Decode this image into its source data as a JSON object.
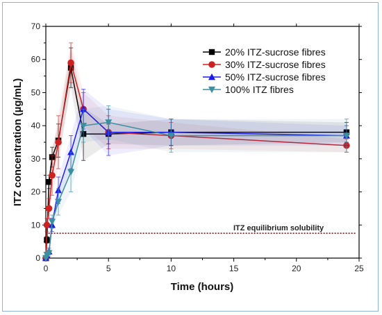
{
  "chart_data": {
    "type": "line",
    "xlabel": "Time (hours)",
    "ylabel": "ITZ concentration (µg/mL)",
    "xlim": [
      0,
      25
    ],
    "ylim": [
      0,
      70
    ],
    "xticks": [
      0,
      5,
      10,
      15,
      20,
      25
    ],
    "yticks": [
      0,
      10,
      20,
      30,
      40,
      50,
      60,
      70
    ],
    "legend_position": "top-right",
    "grid": false,
    "series": [
      {
        "name": "20% ITZ-sucrose fibres",
        "color": "#000000",
        "marker": "square",
        "x": [
          0,
          0.083,
          0.25,
          0.5,
          1,
          2,
          3,
          5,
          10,
          24
        ],
        "y": [
          0,
          5.5,
          23,
          30.5,
          35.5,
          57.5,
          37.5,
          37.5,
          38,
          38
        ],
        "err": [
          0,
          1,
          2,
          3,
          5,
          6,
          8,
          3,
          4,
          3
        ]
      },
      {
        "name": "30% ITZ-sucrose fibres",
        "color": "#cc2222",
        "marker": "circle",
        "x": [
          0,
          0.083,
          0.25,
          0.5,
          1,
          2,
          3,
          5,
          10,
          24
        ],
        "y": [
          0,
          10,
          15,
          25,
          35,
          59,
          45,
          38,
          37,
          34
        ],
        "err": [
          0,
          2,
          3,
          6,
          8,
          6,
          5,
          5,
          4,
          2
        ]
      },
      {
        "name": "50% ITZ-sucrose fibres",
        "color": "#1a1aee",
        "marker": "triangle-up",
        "x": [
          0,
          0.083,
          0.25,
          0.5,
          1,
          2,
          3,
          5,
          10,
          24
        ],
        "y": [
          0,
          1,
          2,
          10,
          20.5,
          32,
          45,
          38,
          38,
          37
        ],
        "err": [
          0,
          0.5,
          1,
          2,
          4,
          5,
          6,
          7,
          4,
          3
        ]
      },
      {
        "name": "100% ITZ fibres",
        "color": "#3a8fa0",
        "marker": "triangle-down",
        "x": [
          0,
          0.083,
          0.25,
          0.5,
          1,
          2,
          3,
          5,
          10,
          24
        ],
        "y": [
          0,
          1,
          1.5,
          11,
          17,
          26,
          40,
          41,
          37,
          37
        ],
        "err": [
          0,
          0.5,
          1,
          2,
          4,
          6,
          5,
          5,
          5,
          5
        ]
      }
    ],
    "reference_line": {
      "y": 7.5,
      "label": "ITZ equilibrium solubility",
      "color": "#8b1a1a"
    }
  }
}
